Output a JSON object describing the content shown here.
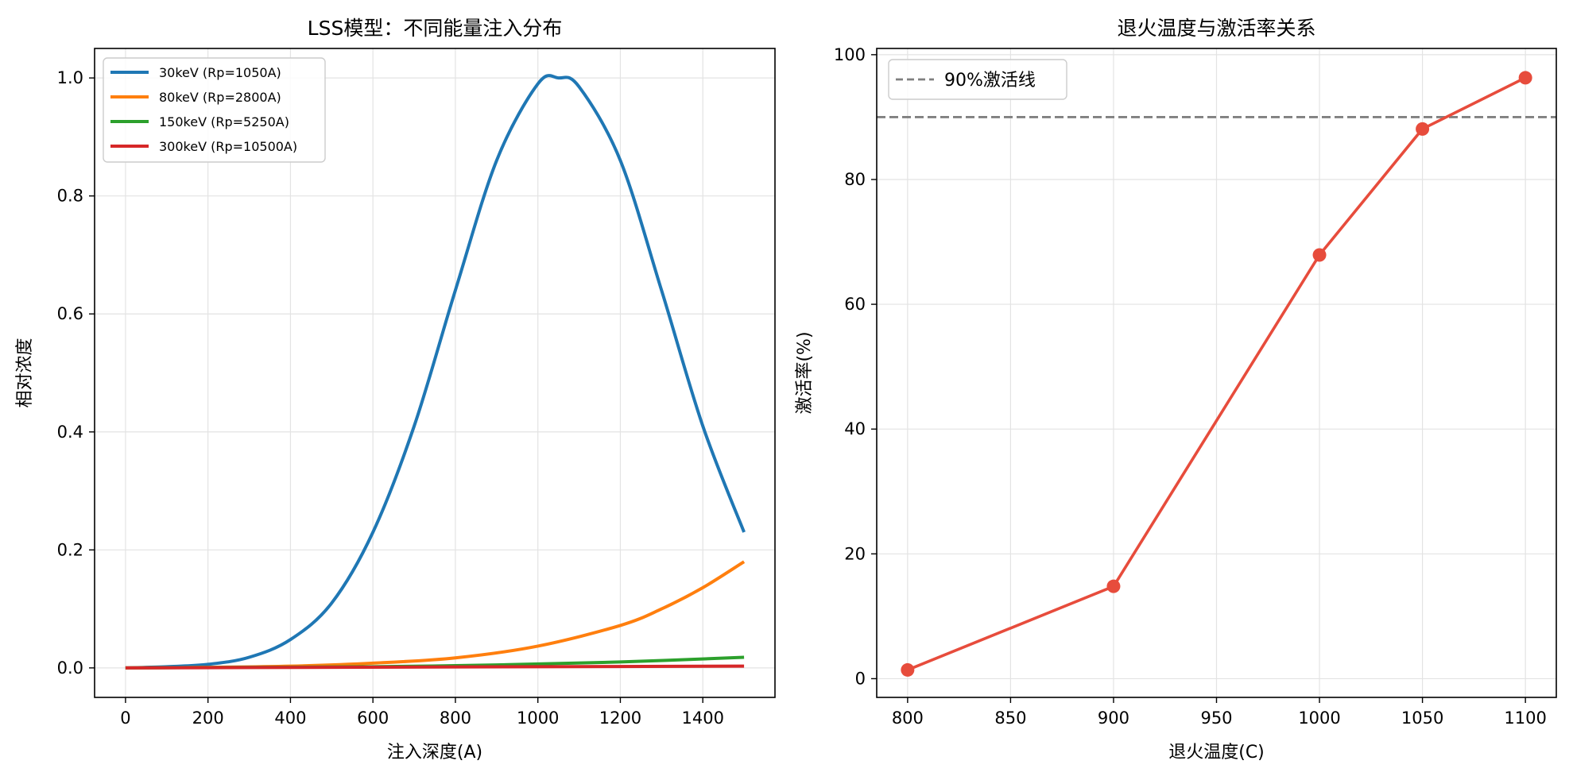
{
  "chart_data": [
    {
      "type": "line",
      "title": "LSS模型：不同能量注入分布",
      "xlabel": "注入深度(A)",
      "ylabel": "相对浓度",
      "xlim": [
        -75,
        1575
      ],
      "ylim": [
        -0.05,
        1.05
      ],
      "xticks": [
        0,
        200,
        400,
        600,
        800,
        1000,
        1200,
        1400
      ],
      "yticks": [
        0.0,
        0.2,
        0.4,
        0.6,
        0.8,
        1.0
      ],
      "xtick_labels": [
        "0",
        "200",
        "400",
        "600",
        "800",
        "1000",
        "1200",
        "1400"
      ],
      "ytick_labels": [
        "0.0",
        "0.2",
        "0.4",
        "0.6",
        "0.8",
        "1.0"
      ],
      "grid": true,
      "legend_position": "top-left",
      "series": [
        {
          "name": "30keV (Rp=1050A)",
          "color": "#1f77b4",
          "x": [
            0,
            100,
            200,
            300,
            400,
            500,
            600,
            700,
            800,
            900,
            1000,
            1050,
            1100,
            1200,
            1300,
            1400,
            1500
          ],
          "y": [
            0.0,
            0.002,
            0.006,
            0.018,
            0.048,
            0.11,
            0.23,
            0.41,
            0.64,
            0.86,
            0.99,
            1.0,
            0.985,
            0.86,
            0.64,
            0.41,
            0.23
          ]
        },
        {
          "name": "80keV (Rp=2800A)",
          "color": "#ff7f0e",
          "x": [
            0,
            200,
            400,
            600,
            800,
            1000,
            1200,
            1300,
            1400,
            1500
          ],
          "y": [
            0.0,
            0.001,
            0.003,
            0.008,
            0.017,
            0.037,
            0.072,
            0.1,
            0.136,
            0.18
          ]
        },
        {
          "name": "150keV (Rp=5250A)",
          "color": "#2ca02c",
          "x": [
            0,
            300,
            600,
            900,
            1200,
            1500
          ],
          "y": [
            0.0,
            0.001,
            0.002,
            0.005,
            0.01,
            0.018
          ]
        },
        {
          "name": "300keV (Rp=10500A)",
          "color": "#d62728",
          "x": [
            0,
            500,
            1000,
            1500
          ],
          "y": [
            0.0,
            0.001,
            0.002,
            0.003
          ]
        }
      ]
    },
    {
      "type": "line",
      "title": "退火温度与激活率关系",
      "xlabel": "退火温度(C)",
      "ylabel": "激活率(%)",
      "xlim": [
        785,
        1115
      ],
      "ylim": [
        -3,
        101
      ],
      "xticks": [
        800,
        850,
        900,
        950,
        1000,
        1050,
        1100
      ],
      "yticks": [
        0,
        20,
        40,
        60,
        80,
        100
      ],
      "xtick_labels": [
        "800",
        "850",
        "900",
        "950",
        "1000",
        "1050",
        "1100"
      ],
      "ytick_labels": [
        "0",
        "20",
        "40",
        "60",
        "80",
        "100"
      ],
      "grid": true,
      "legend_position": "top-left",
      "series": [
        {
          "color": "#e74c3c",
          "markers": true,
          "x": [
            800,
            900,
            1000,
            1050,
            1100
          ],
          "y": [
            1.4,
            14.8,
            67.9,
            88.1,
            96.3
          ]
        }
      ],
      "reference_lines": [
        {
          "name": "90%激活线",
          "y": 90,
          "color": "#808080",
          "style": "dashed"
        }
      ]
    }
  ]
}
